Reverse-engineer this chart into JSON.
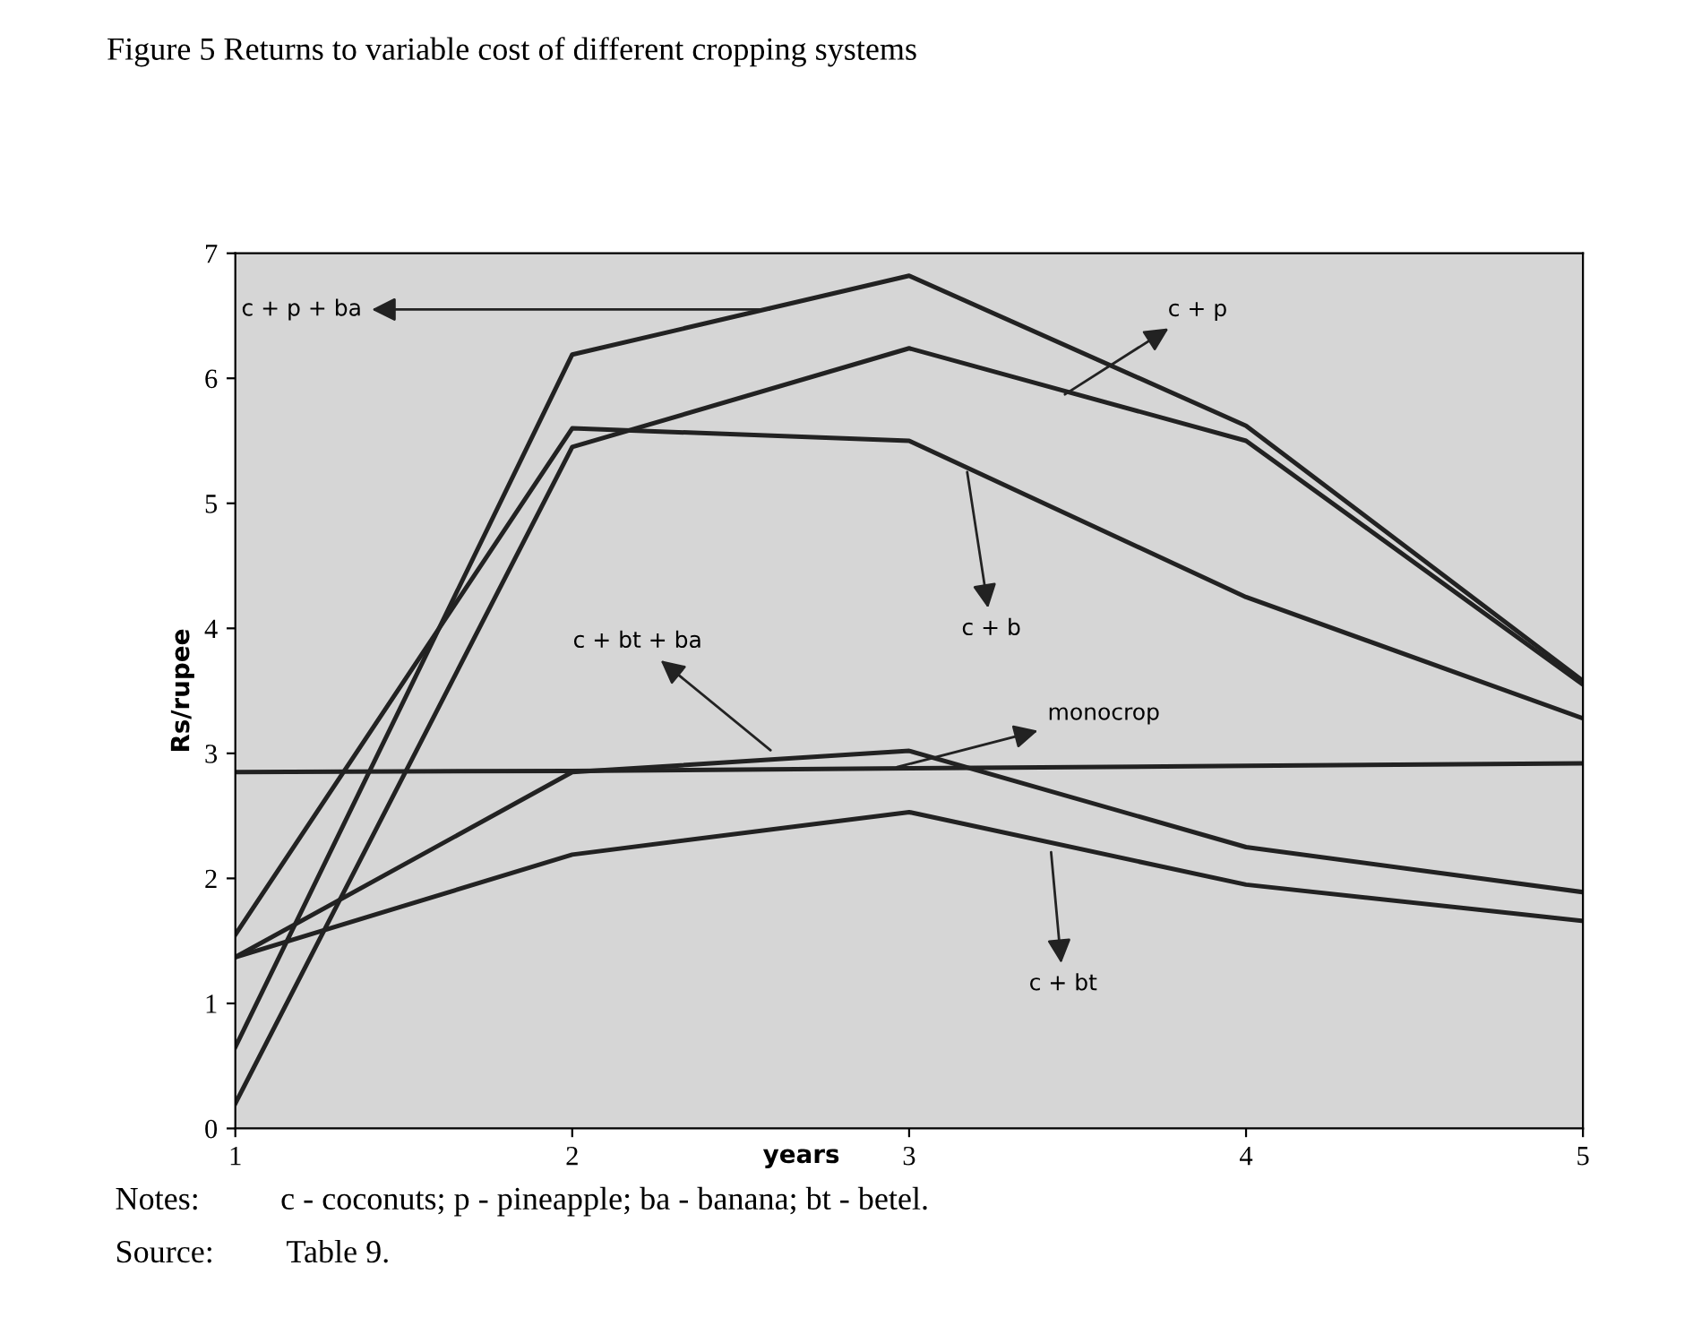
{
  "chart_data": {
    "type": "line",
    "title": "Figure 5 Returns to variable cost of different cropping systems",
    "xlabel": "years",
    "ylabel": "Rs/rupee",
    "x": [
      1,
      2,
      3,
      4,
      5
    ],
    "series": [
      {
        "color": "#222222",
        "values": [
          0.65,
          6.19,
          6.82,
          5.62,
          3.58
        ]
      },
      {
        "color": "#222222",
        "values": [
          0.2,
          5.45,
          6.24,
          5.5,
          3.55
        ]
      },
      {
        "color": "#222222",
        "values": [
          1.55,
          5.6,
          5.5,
          4.25,
          3.28
        ]
      },
      {
        "color": "#222222",
        "values": [
          2.85,
          2.86,
          2.88,
          2.9,
          2.92
        ]
      },
      {
        "color": "#222222",
        "values": [
          1.37,
          2.85,
          3.02,
          2.25,
          1.89
        ]
      },
      {
        "color": "#222222",
        "values": [
          1.37,
          2.19,
          2.53,
          1.95,
          1.66
        ]
      }
    ],
    "xlim": [
      1,
      5
    ],
    "xticks": [
      1,
      2,
      3,
      4,
      5
    ],
    "ylim": [
      0,
      7
    ],
    "yticks": [
      0,
      1,
      2,
      3,
      4,
      5,
      6,
      7
    ],
    "grid": false,
    "marker": "none",
    "line_style": "solid",
    "legend": false,
    "annotations": [
      {
        "text": "c + p + ba",
        "x": 2.6,
        "y": 6.55
      },
      {
        "text": "c + p",
        "x": 3.45,
        "y": 5.85
      },
      {
        "text": "c + b",
        "x": 3.17,
        "y": 5.29
      },
      {
        "text": "monocrop",
        "x": 2.95,
        "y": 2.88
      },
      {
        "text": "c + bt + ba",
        "x": 2.6,
        "y": 3.0
      },
      {
        "text": "c + bt",
        "x": 3.42,
        "y": 2.25
      },
      "Notes:          c - coconuts; p - pineapple; ba - banana; bt - betel.",
      "Source:         Table 9."
    ]
  }
}
